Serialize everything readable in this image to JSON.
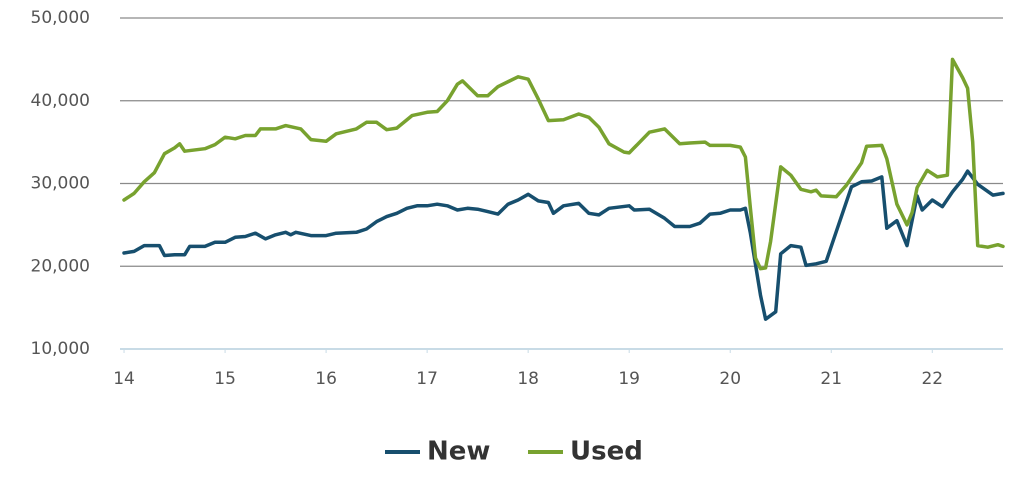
{
  "chart_data": {
    "type": "line",
    "xlim": [
      13.96,
      22.7
    ],
    "xticks": [
      14,
      15,
      16,
      17,
      18,
      19,
      20,
      21,
      22
    ],
    "ylim": [
      10000,
      50000
    ],
    "yticks": [
      {
        "value": 10000,
        "label": "10,000"
      },
      {
        "value": 20000,
        "label": "20,000"
      },
      {
        "value": 30000,
        "label": "30,000"
      },
      {
        "value": 40000,
        "label": "40,000"
      },
      {
        "value": 50000,
        "label": "50,000"
      }
    ],
    "grid": true,
    "legend": "bottom",
    "series": [
      {
        "name": "New",
        "color": "#174f6e",
        "x": [
          14.0,
          14.1,
          14.2,
          14.35,
          14.4,
          14.5,
          14.6,
          14.65,
          14.8,
          14.9,
          15.0,
          15.1,
          15.2,
          15.3,
          15.4,
          15.5,
          15.6,
          15.65,
          15.7,
          15.85,
          16.0,
          16.1,
          16.3,
          16.4,
          16.5,
          16.6,
          16.7,
          16.8,
          16.9,
          17.0,
          17.1,
          17.2,
          17.3,
          17.4,
          17.5,
          17.6,
          17.7,
          17.8,
          17.9,
          18.0,
          18.1,
          18.2,
          18.25,
          18.35,
          18.5,
          18.6,
          18.7,
          18.8,
          19.0,
          19.05,
          19.2,
          19.35,
          19.45,
          19.6,
          19.7,
          19.8,
          19.9,
          20.0,
          20.1,
          20.15,
          20.2,
          20.3,
          20.35,
          20.45,
          20.5,
          20.6,
          20.7,
          20.75,
          20.85,
          20.95,
          21.05,
          21.2,
          21.3,
          21.4,
          21.5,
          21.55,
          21.65,
          21.75,
          21.85,
          21.9,
          22.0,
          22.1,
          22.2,
          22.3,
          22.35,
          22.45,
          22.6,
          22.7
        ],
        "values": [
          21600,
          21800,
          22500,
          22500,
          21300,
          21400,
          21400,
          22400,
          22400,
          22900,
          22900,
          23500,
          23600,
          24000,
          23300,
          23800,
          24100,
          23800,
          24100,
          23700,
          23700,
          24000,
          24100,
          24500,
          25400,
          26000,
          26400,
          27000,
          27300,
          27300,
          27500,
          27300,
          26800,
          27000,
          26900,
          26600,
          26300,
          27500,
          28000,
          28700,
          27900,
          27700,
          26400,
          27300,
          27600,
          26400,
          26200,
          27000,
          27300,
          26800,
          26900,
          25800,
          24800,
          24800,
          25200,
          26300,
          26400,
          26800,
          26800,
          27000,
          24000,
          16500,
          13600,
          14500,
          21500,
          22500,
          22300,
          20100,
          20300,
          20600,
          24200,
          29600,
          30200,
          30300,
          30800,
          24600,
          25500,
          22500,
          28500,
          26800,
          28000,
          27200,
          29000,
          30500,
          31500,
          29900,
          28600,
          28800
        ]
      },
      {
        "name": "Used",
        "color": "#78a22f",
        "x": [
          14.0,
          14.1,
          14.2,
          14.3,
          14.4,
          14.5,
          14.55,
          14.6,
          14.8,
          14.9,
          15.0,
          15.1,
          15.2,
          15.3,
          15.35,
          15.5,
          15.6,
          15.75,
          15.85,
          16.0,
          16.1,
          16.3,
          16.4,
          16.5,
          16.6,
          16.7,
          16.85,
          17.0,
          17.1,
          17.2,
          17.3,
          17.35,
          17.5,
          17.6,
          17.7,
          17.9,
          18.0,
          18.1,
          18.2,
          18.35,
          18.5,
          18.6,
          18.7,
          18.8,
          18.95,
          19.0,
          19.2,
          19.35,
          19.5,
          19.6,
          19.75,
          19.8,
          20.0,
          20.1,
          20.15,
          20.2,
          20.25,
          20.3,
          20.35,
          20.4,
          20.5,
          20.6,
          20.7,
          20.8,
          20.85,
          20.9,
          21.05,
          21.15,
          21.3,
          21.35,
          21.5,
          21.55,
          21.65,
          21.75,
          21.8,
          21.85,
          21.95,
          22.05,
          22.15,
          22.2,
          22.3,
          22.35,
          22.4,
          22.45,
          22.55,
          22.65,
          22.7
        ],
        "values": [
          28000,
          28800,
          30200,
          31300,
          33600,
          34300,
          34800,
          33900,
          34200,
          34700,
          35600,
          35400,
          35800,
          35800,
          36600,
          36600,
          37000,
          36600,
          35300,
          35100,
          36000,
          36600,
          37400,
          37400,
          36500,
          36700,
          38200,
          38600,
          38700,
          40000,
          42000,
          42400,
          40600,
          40600,
          41700,
          42900,
          42600,
          40200,
          37600,
          37700,
          38400,
          38000,
          36800,
          34800,
          33800,
          33700,
          36200,
          36600,
          34800,
          34900,
          35000,
          34600,
          34600,
          34400,
          33200,
          27000,
          21000,
          19700,
          19800,
          23000,
          32000,
          31000,
          29300,
          29000,
          29200,
          28500,
          28400,
          29800,
          32500,
          34500,
          34600,
          33000,
          27500,
          25000,
          26500,
          29500,
          31600,
          30800,
          31000,
          45000,
          42800,
          41500,
          35000,
          22500,
          22300,
          22600,
          22400
        ]
      }
    ]
  }
}
